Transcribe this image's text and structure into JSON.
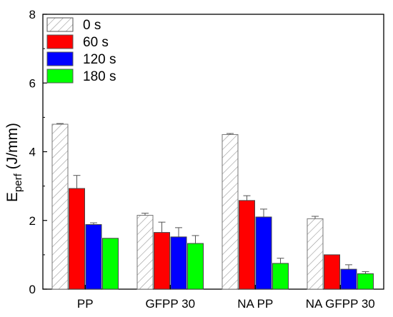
{
  "chart_data": {
    "type": "bar",
    "categories": [
      "PP",
      "GFPP 30",
      "NA PP",
      "NA GFPP 30"
    ],
    "series": [
      {
        "name": "0 s",
        "values": [
          4.8,
          2.15,
          4.5,
          2.05
        ],
        "errors": [
          0.02,
          0.06,
          0.03,
          0.07
        ],
        "color": "#ffffff",
        "pattern": "hatch"
      },
      {
        "name": "60 s",
        "values": [
          2.93,
          1.65,
          2.58,
          1.0
        ],
        "errors": [
          0.38,
          0.3,
          0.14,
          0.0
        ],
        "color": "#ff0000"
      },
      {
        "name": "120 s",
        "values": [
          1.88,
          1.52,
          2.1,
          0.58
        ],
        "errors": [
          0.05,
          0.27,
          0.23,
          0.13
        ],
        "color": "#0000ff"
      },
      {
        "name": "180 s",
        "values": [
          1.48,
          1.33,
          0.75,
          0.45
        ],
        "errors": [
          0.0,
          0.23,
          0.15,
          0.06
        ],
        "color": "#00ff00"
      }
    ],
    "ylabel_main": "E",
    "ylabel_sub": "perf",
    "ylabel_unit": " (J/mm)",
    "ylim": [
      0,
      8
    ],
    "yticks": [
      "0",
      "2",
      "4",
      "6",
      "8"
    ],
    "legend_position": "top-left",
    "grid": false
  }
}
